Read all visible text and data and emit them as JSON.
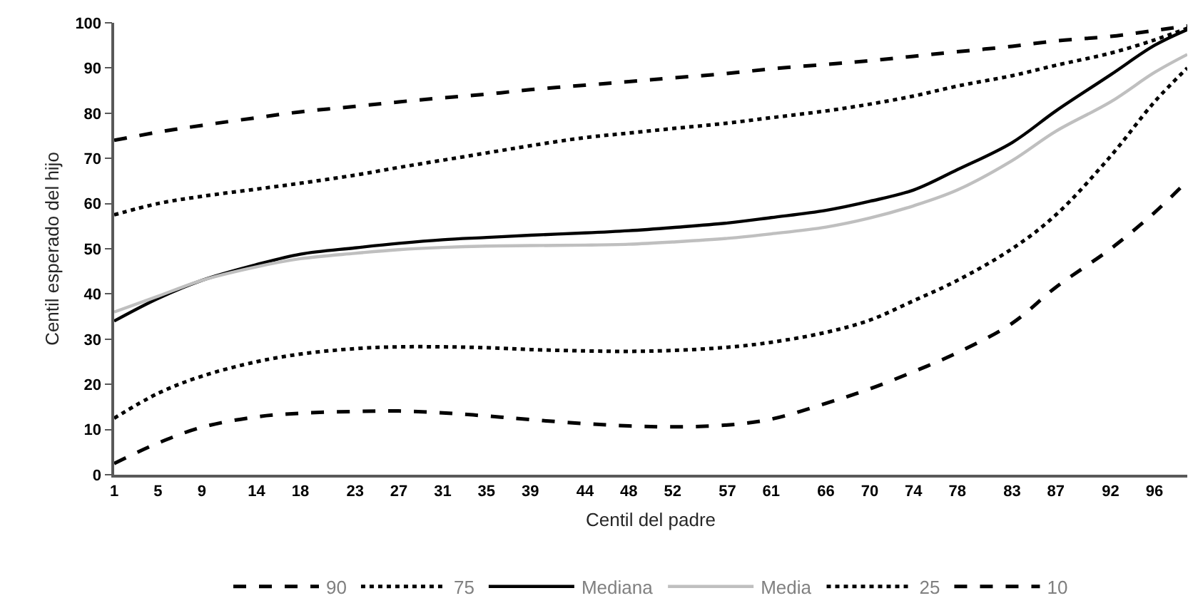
{
  "chart_data": {
    "type": "line",
    "xlabel": "Centil del padre",
    "ylabel": "Centil esperado del hijo",
    "x": [
      1,
      5,
      9,
      14,
      18,
      23,
      27,
      31,
      35,
      39,
      44,
      48,
      52,
      57,
      61,
      66,
      70,
      74,
      78,
      83,
      87,
      92,
      96,
      99
    ],
    "xlim": [
      1,
      99
    ],
    "xticks": [
      1,
      5,
      9,
      14,
      18,
      23,
      27,
      31,
      35,
      39,
      44,
      48,
      52,
      57,
      61,
      66,
      70,
      74,
      78,
      83,
      87,
      92,
      96
    ],
    "ylim": [
      0,
      100
    ],
    "yticks": [
      0,
      10,
      20,
      30,
      40,
      50,
      60,
      70,
      80,
      90,
      100
    ],
    "legend": "bottom",
    "series": [
      {
        "name": "90",
        "color": "#000000",
        "line_style": "dashed",
        "values": [
          74,
          75.8,
          77.3,
          79,
          80.3,
          81.5,
          82.5,
          83.4,
          84.2,
          85.2,
          86.2,
          87,
          87.8,
          88.8,
          89.8,
          90.8,
          91.6,
          92.6,
          93.6,
          94.8,
          96,
          97,
          98.3,
          99.3
        ]
      },
      {
        "name": "75",
        "color": "#000000",
        "line_style": "dotted",
        "values": [
          57.5,
          60,
          61.6,
          63.2,
          64.5,
          66.3,
          68,
          69.6,
          71.2,
          72.8,
          74.6,
          75.6,
          76.6,
          77.8,
          79,
          80.5,
          82,
          83.8,
          86,
          88.3,
          90.6,
          93.3,
          96.2,
          98.8
        ]
      },
      {
        "name": "Mediana",
        "color": "#000000",
        "line_style": "solid",
        "values": [
          34,
          39,
          43,
          46.5,
          48.8,
          50.2,
          51.2,
          52,
          52.5,
          53,
          53.5,
          54,
          54.7,
          55.7,
          56.9,
          58.5,
          60.5,
          63,
          67.5,
          73.5,
          80.5,
          88.5,
          95,
          98.5
        ]
      },
      {
        "name": "Media",
        "color": "#bfbfbf",
        "line_style": "solid",
        "values": [
          36,
          39.5,
          43,
          46,
          47.8,
          49,
          49.8,
          50.3,
          50.6,
          50.7,
          50.8,
          51,
          51.5,
          52.3,
          53.3,
          54.8,
          56.8,
          59.5,
          63,
          69.5,
          76,
          82.5,
          89,
          93
        ]
      },
      {
        "name": "25",
        "color": "#000000",
        "line_style": "dotted",
        "values": [
          12.5,
          18,
          21.8,
          25,
          26.7,
          27.9,
          28.3,
          28.3,
          28.1,
          27.7,
          27.4,
          27.3,
          27.5,
          28.2,
          29.3,
          31.5,
          34.2,
          38.5,
          43,
          50,
          57.5,
          70.5,
          82.5,
          90
        ]
      },
      {
        "name": "10",
        "color": "#000000",
        "line_style": "dashed",
        "values": [
          2.5,
          7,
          10.5,
          12.8,
          13.6,
          14,
          14.1,
          13.7,
          13,
          12.2,
          11.3,
          10.8,
          10.6,
          11,
          12.3,
          15.8,
          19,
          22.8,
          27,
          33.5,
          41.5,
          50,
          58,
          65
        ]
      }
    ]
  }
}
